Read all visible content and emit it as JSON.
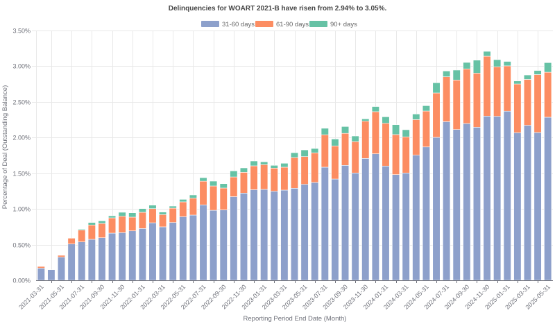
{
  "chart_data": {
    "type": "bar",
    "stacked": true,
    "title": "Delinquencies for WOART 2021-B have risen from 2.94% to 3.05%.",
    "xlabel": "Reporting Period End Date (Month)",
    "ylabel": "Percentage of Deal (Outstanding Balance)",
    "ylim": [
      0,
      3.5
    ],
    "yticks": [
      "0.00%",
      "0.50%",
      "1.00%",
      "1.50%",
      "2.00%",
      "2.50%",
      "3.00%",
      "3.50%"
    ],
    "ytick_values": [
      0,
      0.5,
      1.0,
      1.5,
      2.0,
      2.5,
      3.0,
      3.5
    ],
    "grid": true,
    "legend_position": "top-center",
    "categories": [
      "2021-03-31",
      "2021-04-30",
      "2021-05-31",
      "2021-06-30",
      "2021-07-31",
      "2021-08-31",
      "2021-09-30",
      "2021-10-31",
      "2021-11-30",
      "2021-12-31",
      "2022-01-31",
      "2022-02-28",
      "2022-03-31",
      "2022-04-30",
      "2022-05-31",
      "2022-06-30",
      "2022-07-31",
      "2022-08-31",
      "2022-09-30",
      "2022-10-31",
      "2022-11-30",
      "2022-12-31",
      "2023-01-31",
      "2023-02-28",
      "2023-03-31",
      "2023-04-30",
      "2023-05-31",
      "2023-06-30",
      "2023-07-31",
      "2023-08-31",
      "2023-09-30",
      "2023-10-31",
      "2023-11-30",
      "2023-12-31",
      "2024-01-31",
      "2024-02-29",
      "2024-03-31",
      "2024-04-30",
      "2024-05-31",
      "2024-06-30",
      "2024-07-31",
      "2024-08-31",
      "2024-09-30",
      "2024-10-31",
      "2024-11-30",
      "2024-12-31",
      "2025-01-31",
      "2025-02-28",
      "2025-03-31",
      "2025-04-30",
      "2025-05-31"
    ],
    "xtick_labels": [
      "2021-03-31",
      "2021-05-31",
      "2021-07-31",
      "2021-09-30",
      "2021-11-30",
      "2022-01-31",
      "2022-03-31",
      "2022-05-31",
      "2022-07-31",
      "2022-09-30",
      "2022-11-30",
      "2023-01-31",
      "2023-03-31",
      "2023-05-31",
      "2023-07-31",
      "2023-09-30",
      "2023-11-30",
      "2024-01-31",
      "2024-03-31",
      "2024-05-31",
      "2024-07-31",
      "2024-09-30",
      "2024-11-30",
      "2025-01-31",
      "2025-03-31",
      "2025-05-31"
    ],
    "series": [
      {
        "name": "31-60 days",
        "color": "#8da0cb",
        "values": [
          0.17,
          0.149,
          0.324,
          0.509,
          0.538,
          0.574,
          0.596,
          0.661,
          0.668,
          0.693,
          0.726,
          0.806,
          0.749,
          0.81,
          0.891,
          0.914,
          1.057,
          0.981,
          0.987,
          1.172,
          1.222,
          1.27,
          1.274,
          1.248,
          1.264,
          1.29,
          1.345,
          1.371,
          1.585,
          1.419,
          1.611,
          1.504,
          1.708,
          1.773,
          1.601,
          1.481,
          1.504,
          1.753,
          1.869,
          2.003,
          2.223,
          2.113,
          2.197,
          2.145,
          2.301,
          2.298,
          2.37,
          2.068,
          2.172,
          2.071,
          2.285
        ]
      },
      {
        "name": "61-90 days",
        "color": "#fc8d62",
        "values": [
          0.024,
          0.0,
          0.026,
          0.081,
          0.165,
          0.201,
          0.201,
          0.214,
          0.23,
          0.192,
          0.227,
          0.198,
          0.172,
          0.201,
          0.208,
          0.237,
          0.332,
          0.341,
          0.306,
          0.276,
          0.291,
          0.334,
          0.347,
          0.324,
          0.321,
          0.43,
          0.389,
          0.415,
          0.454,
          0.464,
          0.448,
          0.44,
          0.522,
          0.59,
          0.599,
          0.561,
          0.506,
          0.499,
          0.503,
          0.622,
          0.629,
          0.693,
          0.765,
          0.758,
          0.839,
          0.694,
          0.635,
          0.683,
          0.643,
          0.812,
          0.631
        ]
      },
      {
        "name": "90+ days",
        "color": "#66c2a5",
        "values": [
          0.0,
          0.0,
          0.0,
          0.0,
          0.013,
          0.035,
          0.036,
          0.029,
          0.055,
          0.061,
          0.052,
          0.049,
          0.035,
          0.029,
          0.035,
          0.045,
          0.049,
          0.068,
          0.061,
          0.085,
          0.062,
          0.068,
          0.039,
          0.039,
          0.055,
          0.068,
          0.093,
          0.061,
          0.091,
          0.097,
          0.096,
          0.078,
          0.032,
          0.072,
          0.091,
          0.139,
          0.1,
          0.078,
          0.075,
          0.143,
          0.081,
          0.14,
          0.091,
          0.182,
          0.068,
          0.1,
          0.062,
          0.042,
          0.062,
          0.057,
          0.134
        ]
      }
    ]
  }
}
